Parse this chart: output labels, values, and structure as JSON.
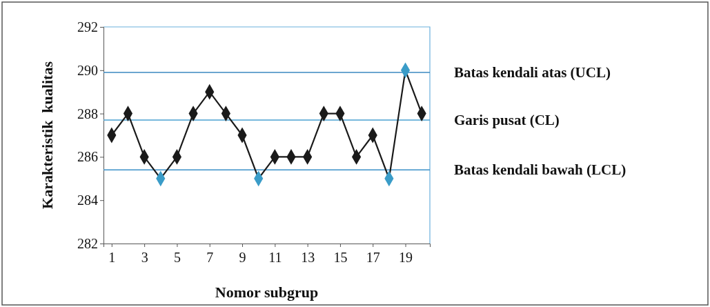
{
  "chart_data": {
    "type": "line",
    "xlabel": "Nomor subgrup",
    "ylabel": "Karakteristik  kualitas",
    "x": [
      1,
      2,
      3,
      4,
      5,
      6,
      7,
      8,
      9,
      10,
      11,
      12,
      13,
      14,
      15,
      16,
      17,
      18,
      19,
      20
    ],
    "xlim": [
      0.5,
      20.5
    ],
    "xticks": [
      1,
      3,
      5,
      7,
      9,
      11,
      13,
      15,
      17,
      19
    ],
    "series": [
      {
        "color": "#1a1a1a",
        "values": [
          287,
          288,
          286,
          285,
          286,
          288,
          289,
          288,
          287,
          285,
          286,
          286,
          286,
          288,
          288,
          286,
          287,
          285,
          290,
          288
        ],
        "colors": [
          "#1a1a1a",
          "#1a1a1a",
          "#1a1a1a",
          "#3a9cc8",
          "#1a1a1a",
          "#1a1a1a",
          "#1a1a1a",
          "#1a1a1a",
          "#1a1a1a",
          "#3a9cc8",
          "#1a1a1a",
          "#1a1a1a",
          "#1a1a1a",
          "#1a1a1a",
          "#1a1a1a",
          "#1a1a1a",
          "#1a1a1a",
          "#3a9cc8",
          "#3a9cc8",
          "#1a1a1a"
        ]
      }
    ],
    "marker": "diamond",
    "line_style": "solid",
    "ylim": [
      282,
      292
    ],
    "yticks": [
      282,
      284,
      286,
      288,
      290,
      292
    ],
    "ref_lines": [
      {
        "axis": "y",
        "value": 289.9,
        "label": "Batas kendali atas (UCL)",
        "color": "#3a88c0"
      },
      {
        "axis": "y",
        "value": 287.7,
        "label": "Garis pusat (CL)",
        "color": "#4aa0d0"
      },
      {
        "axis": "y",
        "value": 285.4,
        "label": "Batas kendali bawah (LCL)",
        "color": "#3a90c8"
      }
    ]
  }
}
